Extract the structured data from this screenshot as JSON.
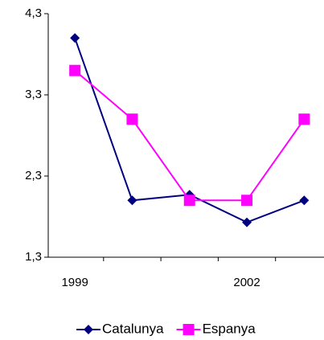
{
  "chart_data": {
    "type": "line",
    "categories": [
      "1999",
      null,
      null,
      "2002",
      null
    ],
    "series": [
      {
        "name": "Catalunya",
        "color": "#000080",
        "marker": "diamond",
        "values": [
          4.0,
          2.0,
          2.07,
          1.73,
          2.0
        ]
      },
      {
        "name": "Espanya",
        "color": "#ff00ff",
        "marker": "square",
        "values": [
          3.6,
          3.0,
          2.0,
          2.0,
          3.0
        ]
      }
    ],
    "ylim": [
      1.3,
      4.3
    ],
    "yticks": [
      {
        "value": 1.3,
        "label": "1,3"
      },
      {
        "value": 2.3,
        "label": "2,3"
      },
      {
        "value": 3.3,
        "label": "3,3"
      },
      {
        "value": 4.3,
        "label": "4,3"
      }
    ],
    "grid": false,
    "legend": "bottom"
  }
}
